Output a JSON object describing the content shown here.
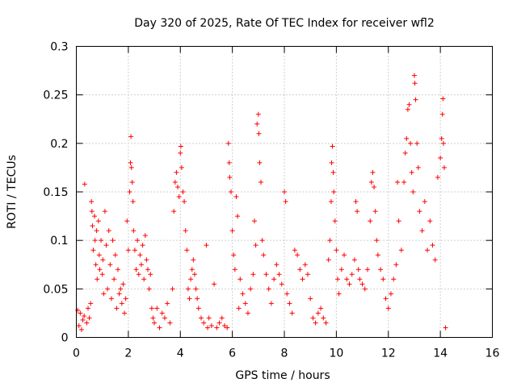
{
  "chart_data": {
    "type": "scatter",
    "title": "Day 320 of 2025, Rate Of TEC Index for receiver wfl2",
    "xlabel": "GPS time / hours",
    "ylabel": "ROTI / TECUs",
    "xlim": [
      0,
      16
    ],
    "ylim": [
      0,
      0.3
    ],
    "x_ticks": [
      0,
      2,
      4,
      6,
      8,
      10,
      12,
      14,
      16
    ],
    "x_tick_labels": [
      "0",
      "2",
      "4",
      "6",
      "8",
      "10",
      "12",
      "14",
      "16"
    ],
    "y_ticks": [
      0,
      0.05,
      0.1,
      0.15,
      0.2,
      0.25,
      0.3
    ],
    "y_tick_labels": [
      "0",
      "0.05",
      "0.1",
      "0.15",
      "0.2",
      "0.25",
      "0.3"
    ],
    "grid": true,
    "marker": "+",
    "color": "#ff0000",
    "series": [
      {
        "name": "ROTI",
        "points": [
          [
            0.05,
            0.028
          ],
          [
            0.1,
            0.012
          ],
          [
            0.15,
            0.025
          ],
          [
            0.2,
            0.008
          ],
          [
            0.25,
            0.018
          ],
          [
            0.3,
            0.022
          ],
          [
            0.32,
            0.158
          ],
          [
            0.4,
            0.015
          ],
          [
            0.45,
            0.03
          ],
          [
            0.5,
            0.02
          ],
          [
            0.55,
            0.035
          ],
          [
            0.58,
            0.14
          ],
          [
            0.6,
            0.13
          ],
          [
            0.62,
            0.115
          ],
          [
            0.65,
            0.09
          ],
          [
            0.7,
            0.125
          ],
          [
            0.72,
            0.1
          ],
          [
            0.75,
            0.075
          ],
          [
            0.78,
            0.11
          ],
          [
            0.8,
            0.06
          ],
          [
            0.85,
            0.12
          ],
          [
            0.88,
            0.085
          ],
          [
            0.9,
            0.07
          ],
          [
            0.95,
            0.1
          ],
          [
            1.0,
            0.065
          ],
          [
            1.02,
            0.08
          ],
          [
            1.05,
            0.045
          ],
          [
            1.1,
            0.13
          ],
          [
            1.15,
            0.095
          ],
          [
            1.2,
            0.05
          ],
          [
            1.25,
            0.11
          ],
          [
            1.3,
            0.075
          ],
          [
            1.35,
            0.04
          ],
          [
            1.4,
            0.1
          ],
          [
            1.45,
            0.06
          ],
          [
            1.5,
            0.085
          ],
          [
            1.55,
            0.03
          ],
          [
            1.6,
            0.07
          ],
          [
            1.65,
            0.045
          ],
          [
            1.7,
            0.05
          ],
          [
            1.75,
            0.035
          ],
          [
            1.8,
            0.055
          ],
          [
            1.85,
            0.025
          ],
          [
            1.9,
            0.04
          ],
          [
            1.95,
            0.12
          ],
          [
            2.0,
            0.09
          ],
          [
            2.05,
            0.15
          ],
          [
            2.08,
            0.18
          ],
          [
            2.1,
            0.207
          ],
          [
            2.12,
            0.175
          ],
          [
            2.15,
            0.16
          ],
          [
            2.18,
            0.14
          ],
          [
            2.2,
            0.11
          ],
          [
            2.25,
            0.09
          ],
          [
            2.3,
            0.07
          ],
          [
            2.35,
            0.1
          ],
          [
            2.4,
            0.065
          ],
          [
            2.45,
            0.085
          ],
          [
            2.5,
            0.075
          ],
          [
            2.55,
            0.095
          ],
          [
            2.6,
            0.06
          ],
          [
            2.65,
            0.105
          ],
          [
            2.7,
            0.08
          ],
          [
            2.75,
            0.07
          ],
          [
            2.8,
            0.05
          ],
          [
            2.85,
            0.065
          ],
          [
            2.9,
            0.03
          ],
          [
            2.95,
            0.02
          ],
          [
            3.0,
            0.015
          ],
          [
            3.1,
            0.03
          ],
          [
            3.2,
            0.01
          ],
          [
            3.3,
            0.025
          ],
          [
            3.4,
            0.02
          ],
          [
            3.5,
            0.035
          ],
          [
            3.6,
            0.015
          ],
          [
            3.7,
            0.05
          ],
          [
            3.75,
            0.13
          ],
          [
            3.8,
            0.16
          ],
          [
            3.85,
            0.17
          ],
          [
            3.9,
            0.155
          ],
          [
            3.95,
            0.145
          ],
          [
            4.0,
            0.19
          ],
          [
            4.02,
            0.197
          ],
          [
            4.05,
            0.175
          ],
          [
            4.1,
            0.15
          ],
          [
            4.15,
            0.14
          ],
          [
            4.2,
            0.11
          ],
          [
            4.25,
            0.09
          ],
          [
            4.3,
            0.05
          ],
          [
            4.35,
            0.04
          ],
          [
            4.4,
            0.06
          ],
          [
            4.45,
            0.07
          ],
          [
            4.5,
            0.08
          ],
          [
            4.55,
            0.065
          ],
          [
            4.6,
            0.05
          ],
          [
            4.65,
            0.04
          ],
          [
            4.7,
            0.03
          ],
          [
            4.8,
            0.02
          ],
          [
            4.9,
            0.015
          ],
          [
            5.0,
            0.095
          ],
          [
            5.05,
            0.01
          ],
          [
            5.1,
            0.02
          ],
          [
            5.2,
            0.012
          ],
          [
            5.3,
            0.055
          ],
          [
            5.4,
            0.01
          ],
          [
            5.5,
            0.015
          ],
          [
            5.6,
            0.02
          ],
          [
            5.7,
            0.012
          ],
          [
            5.8,
            0.01
          ],
          [
            5.85,
            0.2
          ],
          [
            5.88,
            0.18
          ],
          [
            5.9,
            0.165
          ],
          [
            5.95,
            0.15
          ],
          [
            6.0,
            0.11
          ],
          [
            6.05,
            0.085
          ],
          [
            6.1,
            0.07
          ],
          [
            6.15,
            0.145
          ],
          [
            6.2,
            0.125
          ],
          [
            6.25,
            0.03
          ],
          [
            6.3,
            0.06
          ],
          [
            6.4,
            0.045
          ],
          [
            6.5,
            0.035
          ],
          [
            6.6,
            0.025
          ],
          [
            6.7,
            0.05
          ],
          [
            6.8,
            0.065
          ],
          [
            6.85,
            0.12
          ],
          [
            6.9,
            0.095
          ],
          [
            6.95,
            0.22
          ],
          [
            7.0,
            0.23
          ],
          [
            7.02,
            0.21
          ],
          [
            7.05,
            0.18
          ],
          [
            7.1,
            0.16
          ],
          [
            7.15,
            0.1
          ],
          [
            7.2,
            0.085
          ],
          [
            7.3,
            0.065
          ],
          [
            7.4,
            0.05
          ],
          [
            7.5,
            0.035
          ],
          [
            7.6,
            0.06
          ],
          [
            7.7,
            0.075
          ],
          [
            7.8,
            0.065
          ],
          [
            7.9,
            0.055
          ],
          [
            8.0,
            0.15
          ],
          [
            8.05,
            0.14
          ],
          [
            8.1,
            0.045
          ],
          [
            8.2,
            0.035
          ],
          [
            8.3,
            0.025
          ],
          [
            8.4,
            0.09
          ],
          [
            8.5,
            0.085
          ],
          [
            8.6,
            0.07
          ],
          [
            8.7,
            0.06
          ],
          [
            8.8,
            0.075
          ],
          [
            8.9,
            0.065
          ],
          [
            9.0,
            0.04
          ],
          [
            9.1,
            0.02
          ],
          [
            9.2,
            0.015
          ],
          [
            9.3,
            0.025
          ],
          [
            9.4,
            0.03
          ],
          [
            9.5,
            0.02
          ],
          [
            9.6,
            0.015
          ],
          [
            9.7,
            0.08
          ],
          [
            9.75,
            0.1
          ],
          [
            9.8,
            0.14
          ],
          [
            9.82,
            0.18
          ],
          [
            9.85,
            0.197
          ],
          [
            9.88,
            0.17
          ],
          [
            9.9,
            0.15
          ],
          [
            9.95,
            0.12
          ],
          [
            10.0,
            0.09
          ],
          [
            10.05,
            0.06
          ],
          [
            10.1,
            0.045
          ],
          [
            10.2,
            0.07
          ],
          [
            10.3,
            0.085
          ],
          [
            10.4,
            0.06
          ],
          [
            10.5,
            0.055
          ],
          [
            10.6,
            0.065
          ],
          [
            10.7,
            0.08
          ],
          [
            10.75,
            0.14
          ],
          [
            10.8,
            0.13
          ],
          [
            10.85,
            0.07
          ],
          [
            10.9,
            0.06
          ],
          [
            11.0,
            0.055
          ],
          [
            11.1,
            0.05
          ],
          [
            11.2,
            0.07
          ],
          [
            11.3,
            0.12
          ],
          [
            11.35,
            0.16
          ],
          [
            11.4,
            0.17
          ],
          [
            11.45,
            0.155
          ],
          [
            11.5,
            0.13
          ],
          [
            11.55,
            0.1
          ],
          [
            11.6,
            0.085
          ],
          [
            11.7,
            0.07
          ],
          [
            11.8,
            0.06
          ],
          [
            11.9,
            0.04
          ],
          [
            12.0,
            0.03
          ],
          [
            12.1,
            0.045
          ],
          [
            12.2,
            0.06
          ],
          [
            12.3,
            0.075
          ],
          [
            12.35,
            0.16
          ],
          [
            12.4,
            0.12
          ],
          [
            12.5,
            0.09
          ],
          [
            12.6,
            0.16
          ],
          [
            12.65,
            0.19
          ],
          [
            12.7,
            0.205
          ],
          [
            12.75,
            0.235
          ],
          [
            12.8,
            0.24
          ],
          [
            12.85,
            0.2
          ],
          [
            12.9,
            0.17
          ],
          [
            12.95,
            0.15
          ],
          [
            13.0,
            0.27
          ],
          [
            13.02,
            0.262
          ],
          [
            13.05,
            0.245
          ],
          [
            13.1,
            0.2
          ],
          [
            13.15,
            0.175
          ],
          [
            13.2,
            0.13
          ],
          [
            13.3,
            0.11
          ],
          [
            13.4,
            0.14
          ],
          [
            13.5,
            0.09
          ],
          [
            13.6,
            0.12
          ],
          [
            13.7,
            0.095
          ],
          [
            13.8,
            0.08
          ],
          [
            13.9,
            0.165
          ],
          [
            14.0,
            0.185
          ],
          [
            14.05,
            0.205
          ],
          [
            14.08,
            0.23
          ],
          [
            14.1,
            0.246
          ],
          [
            14.12,
            0.2
          ],
          [
            14.15,
            0.175
          ],
          [
            14.2,
            0.01
          ]
        ]
      }
    ]
  }
}
